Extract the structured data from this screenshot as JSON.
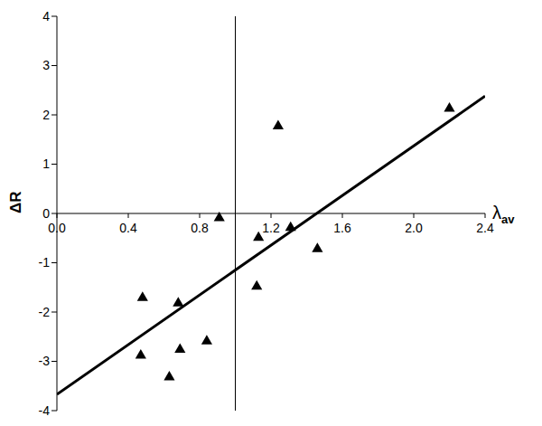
{
  "chart_data": {
    "type": "scatter",
    "x_label": "λav",
    "y_label": "ΔR",
    "xlim": [
      0,
      2.4
    ],
    "xticks": [
      {
        "value": 0,
        "label": "0.0"
      },
      0.4,
      0.8,
      1.2,
      1.6,
      {
        "value": 2,
        "label": "2.0"
      },
      2.4
    ],
    "ylim": [
      -4,
      4
    ],
    "yticks": [
      -4,
      -3,
      -2,
      -1,
      0,
      1,
      2,
      3,
      4
    ],
    "reference_x": 1,
    "grid": false,
    "series": [
      {
        "type": "scatter",
        "marker": "triangle",
        "color": "#000000",
        "x": [
          0.48,
          0.47,
          0.68,
          0.69,
          0.63,
          0.84,
          0.91,
          1.13,
          1.12,
          1.24,
          1.31,
          1.46,
          2.2
        ],
        "values": [
          -1.71,
          -2.88,
          -1.82,
          -2.76,
          -3.32,
          -2.59,
          -0.09,
          -0.49,
          -1.48,
          1.77,
          -0.29,
          -0.72,
          2.13
        ]
      },
      {
        "type": "line",
        "line_style": "solid",
        "color": "#000000",
        "x": [
          0,
          2.4
        ],
        "values": [
          -3.67,
          2.38
        ]
      }
    ]
  }
}
